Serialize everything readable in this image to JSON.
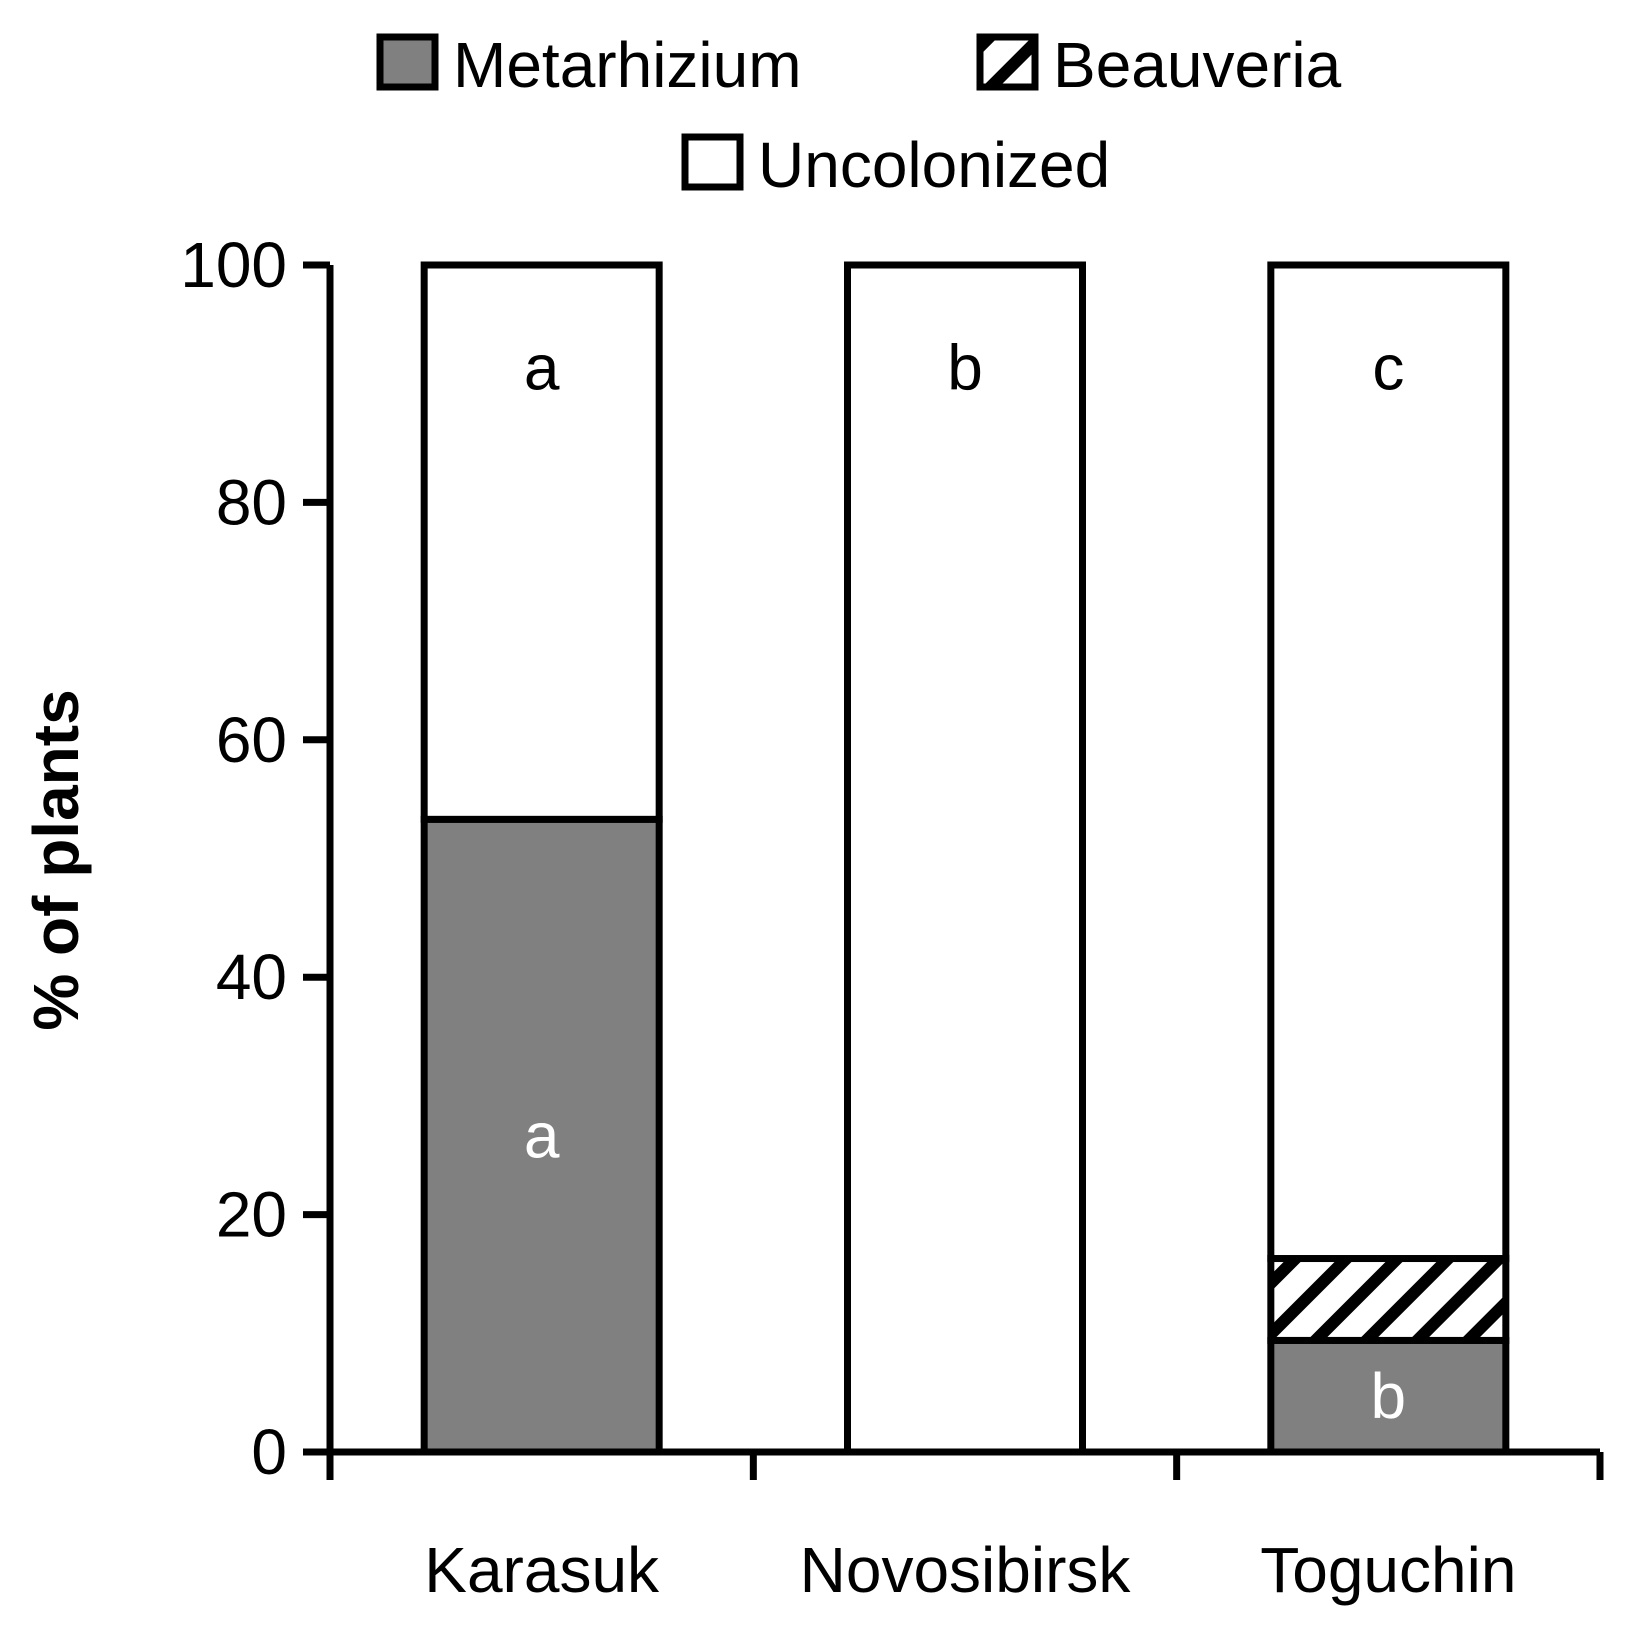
{
  "chart_data": {
    "type": "bar",
    "stacked": true,
    "title": "",
    "xlabel": "",
    "ylabel": "% of plants",
    "ylim": [
      0,
      100
    ],
    "yticks": [
      "0",
      "20",
      "40",
      "60",
      "80",
      "100"
    ],
    "categories": [
      "Karasuk",
      "Novosibirsk",
      "Toguchin"
    ],
    "series": [
      {
        "name": "Metarhizium",
        "values": [
          53.3,
          0,
          9.4
        ],
        "color": "#808080",
        "pattern": "solid"
      },
      {
        "name": "Beauveria",
        "values": [
          0,
          0,
          6.9
        ],
        "color": "#ffffff",
        "pattern": "diagonal-hatch"
      },
      {
        "name": "Uncolonized",
        "values": [
          46.7,
          100,
          83.7
        ],
        "color": "#ffffff",
        "pattern": "solid"
      }
    ],
    "legend_position": "top",
    "grid": false,
    "annotations": {
      "top_letters": [
        "a",
        "b",
        "c"
      ],
      "metarhizium_letters": [
        "a",
        "",
        "b"
      ]
    }
  }
}
